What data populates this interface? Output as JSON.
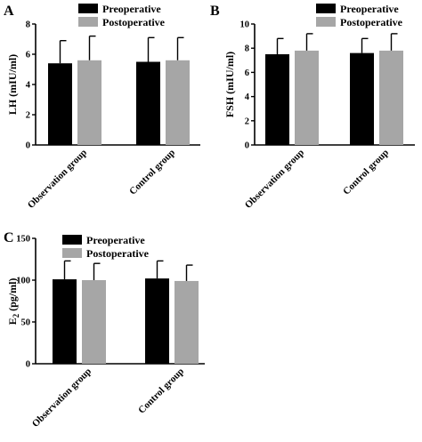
{
  "legend_colors": {
    "Preoperative": "#000000",
    "Postoperative": "#a6a6a6"
  },
  "chart_data": [
    {
      "type": "bar",
      "panel": "A",
      "ylabel": "LH  (mIU/ml)",
      "ylim": [
        0,
        8
      ],
      "yticks": [
        0,
        2,
        4,
        6,
        8
      ],
      "categories": [
        "Observation group",
        "Control group"
      ],
      "series": [
        {
          "name": "Preoperative",
          "values": [
            5.4,
            5.5
          ],
          "errors": [
            1.5,
            1.6
          ]
        },
        {
          "name": "Postoperative",
          "values": [
            5.6,
            5.6
          ],
          "errors": [
            1.6,
            1.5
          ]
        }
      ],
      "legend": "top-center"
    },
    {
      "type": "bar",
      "panel": "B",
      "ylabel": "FSH  (mIU/ml)",
      "ylim": [
        0,
        10
      ],
      "yticks": [
        0,
        2,
        4,
        6,
        8,
        10
      ],
      "categories": [
        "Observation group",
        "Control group"
      ],
      "series": [
        {
          "name": "Preoperative",
          "values": [
            7.5,
            7.6
          ],
          "errors": [
            1.3,
            1.2
          ]
        },
        {
          "name": "Postoperative",
          "values": [
            7.8,
            7.8
          ],
          "errors": [
            1.4,
            1.4
          ]
        }
      ],
      "legend": "top-center"
    },
    {
      "type": "bar",
      "panel": "C",
      "ylabel": "E2  (pg/ml)",
      "ylim": [
        0,
        150
      ],
      "yticks": [
        0,
        50,
        100,
        150
      ],
      "categories": [
        "Observation group",
        "Control group"
      ],
      "series": [
        {
          "name": "Preoperative",
          "values": [
            101,
            102
          ],
          "errors": [
            22,
            21
          ]
        },
        {
          "name": "Postoperative",
          "values": [
            100,
            99
          ],
          "errors": [
            20,
            19
          ]
        }
      ],
      "legend": "top-center"
    }
  ]
}
